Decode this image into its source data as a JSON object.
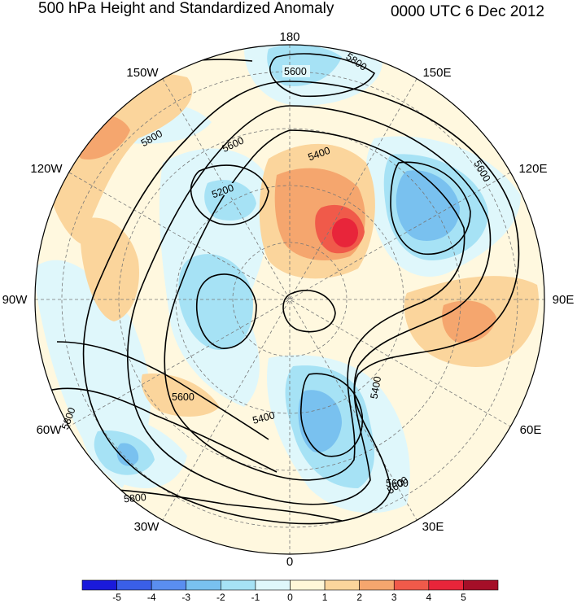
{
  "header": {
    "title": "500 hPa Height and Standardized Anomaly",
    "datetime": "0000 UTC 6 Dec 2012"
  },
  "longitude_labels": [
    "180",
    "150E",
    "120E",
    "90E",
    "60E",
    "30E",
    "0",
    "30W",
    "60W",
    "90W",
    "120W",
    "150W"
  ],
  "contour_labels": [
    "5600",
    "5800",
    "5800",
    "5600",
    "5400",
    "5200",
    "5600",
    "5600",
    "5800",
    "5600",
    "5400",
    "5400",
    "5600",
    "5800"
  ],
  "colorbar": {
    "ticks": [
      "-5",
      "-4",
      "-3",
      "-2",
      "-1",
      "0",
      "1",
      "2",
      "3",
      "4",
      "5"
    ],
    "colors": [
      "#1a1adb",
      "#3a5fe8",
      "#5a8ef0",
      "#79c1ef",
      "#a6e2f5",
      "#dff7fb",
      "#fff7d8",
      "#fbd59c",
      "#f5a66e",
      "#f05a4a",
      "#e8253a",
      "#a50f28"
    ]
  }
}
